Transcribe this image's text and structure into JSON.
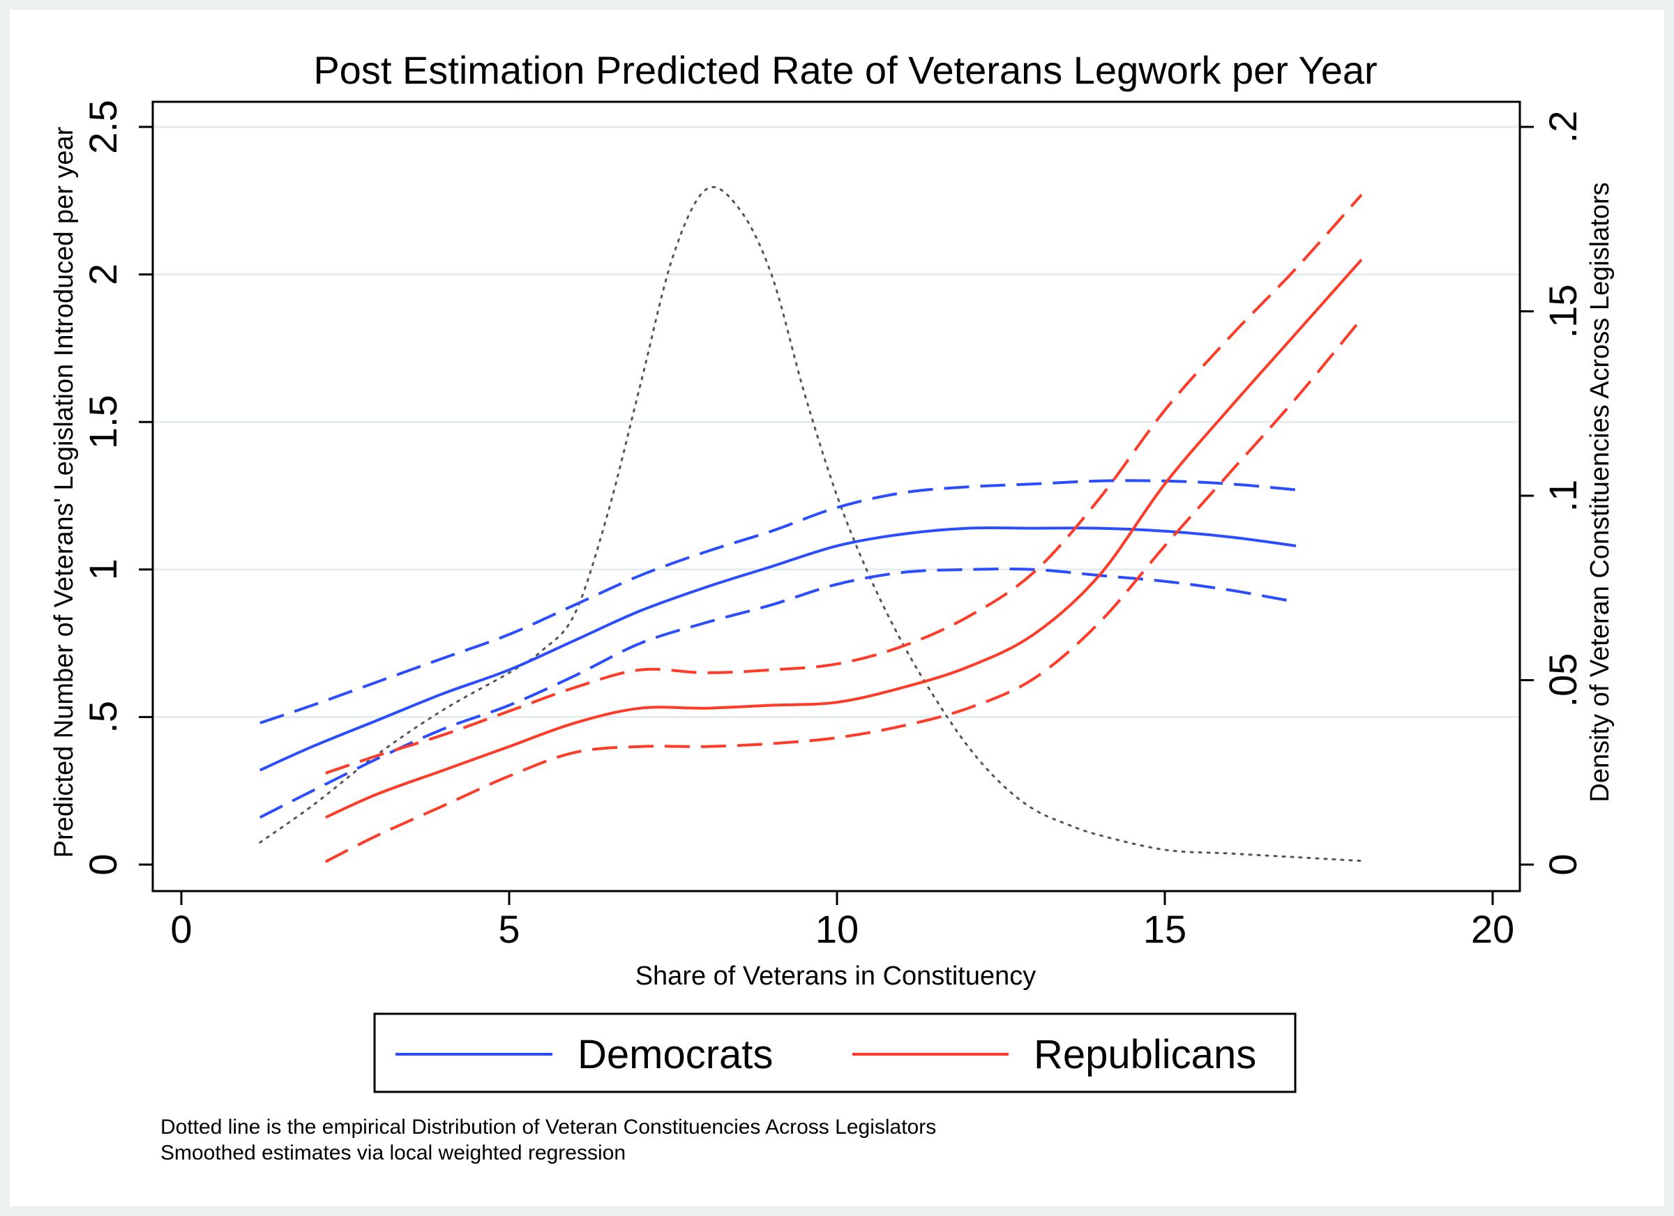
{
  "colors": {
    "dem": "#2a4dff",
    "rep": "#ff3a26",
    "density": "#555555",
    "grid": "#e3ecef"
  },
  "chart_data": {
    "type": "line",
    "title": "Post Estimation Predicted Rate of Veterans Legwork per Year",
    "xlabel": "Share of Veterans in Constituency",
    "ylabel": "Predicted Number of Veterans' Legislation Introduced per year",
    "y2label": "Density of Veteran Constituencies Across Legislators",
    "xlim": [
      0,
      20
    ],
    "ylim": [
      0,
      2.5
    ],
    "y2lim": [
      0,
      0.2
    ],
    "xticks": [
      {
        "v": 0,
        "label": "0"
      },
      {
        "v": 5,
        "label": "5"
      },
      {
        "v": 10,
        "label": "10"
      },
      {
        "v": 15,
        "label": "15"
      },
      {
        "v": 20,
        "label": "20"
      }
    ],
    "yticks": [
      {
        "v": 0,
        "label": "0"
      },
      {
        "v": 0.5,
        "label": ".5"
      },
      {
        "v": 1,
        "label": "1"
      },
      {
        "v": 1.5,
        "label": "1.5"
      },
      {
        "v": 2,
        "label": "2"
      },
      {
        "v": 2.5,
        "label": "2.5"
      }
    ],
    "y2ticks": [
      {
        "v": 0,
        "label": "0"
      },
      {
        "v": 0.05,
        "label": ".05"
      },
      {
        "v": 0.1,
        "label": ".1"
      },
      {
        "v": 0.15,
        "label": ".15"
      },
      {
        "v": 0.2,
        "label": ".2"
      }
    ],
    "series": [
      {
        "name": "Democrats",
        "style": "solid",
        "color": "dem",
        "x": [
          1.2,
          2,
          3,
          4,
          5,
          6,
          7,
          8,
          9,
          10,
          11,
          12,
          13,
          14,
          15,
          16,
          17
        ],
        "y": [
          0.32,
          0.4,
          0.49,
          0.58,
          0.66,
          0.76,
          0.86,
          0.94,
          1.01,
          1.08,
          1.12,
          1.14,
          1.14,
          1.14,
          1.13,
          1.11,
          1.08
        ]
      },
      {
        "name": "Democrats upper",
        "style": "dashed",
        "color": "dem",
        "x": [
          1.2,
          2,
          3,
          4,
          5,
          6,
          7,
          8,
          9,
          10,
          11,
          12,
          13,
          14,
          15,
          16,
          17
        ],
        "y": [
          0.48,
          0.54,
          0.62,
          0.7,
          0.78,
          0.88,
          0.98,
          1.06,
          1.13,
          1.21,
          1.26,
          1.28,
          1.29,
          1.3,
          1.3,
          1.29,
          1.27
        ]
      },
      {
        "name": "Democrats lower",
        "style": "dashed",
        "color": "dem",
        "x": [
          1.2,
          2,
          3,
          4,
          5,
          6,
          7,
          8,
          9,
          10,
          11,
          12,
          13,
          14,
          15,
          16,
          17
        ],
        "y": [
          0.16,
          0.25,
          0.36,
          0.46,
          0.54,
          0.64,
          0.75,
          0.82,
          0.88,
          0.95,
          0.99,
          1.0,
          1.0,
          0.98,
          0.96,
          0.93,
          0.89
        ]
      },
      {
        "name": "Republicans",
        "style": "solid",
        "color": "rep",
        "x": [
          2.2,
          3,
          4,
          5,
          6,
          7,
          8,
          9,
          10,
          11,
          12,
          13,
          14,
          15,
          16,
          17,
          18
        ],
        "y": [
          0.16,
          0.24,
          0.32,
          0.4,
          0.48,
          0.53,
          0.53,
          0.54,
          0.55,
          0.6,
          0.67,
          0.78,
          0.98,
          1.29,
          1.55,
          1.8,
          2.05
        ]
      },
      {
        "name": "Republicans upper",
        "style": "dashed",
        "color": "rep",
        "x": [
          2.2,
          3,
          4,
          5,
          6,
          7,
          8,
          9,
          10,
          11,
          12,
          13,
          14,
          15,
          16,
          17,
          18
        ],
        "y": [
          0.31,
          0.37,
          0.44,
          0.52,
          0.6,
          0.66,
          0.65,
          0.66,
          0.68,
          0.74,
          0.84,
          0.99,
          1.24,
          1.54,
          1.79,
          2.02,
          2.27
        ]
      },
      {
        "name": "Republicans lower",
        "style": "dashed",
        "color": "rep",
        "x": [
          2.2,
          3,
          4,
          5,
          6,
          7,
          8,
          9,
          10,
          11,
          12,
          13,
          14,
          15,
          16,
          17,
          18
        ],
        "y": [
          0.01,
          0.1,
          0.2,
          0.3,
          0.38,
          0.4,
          0.4,
          0.41,
          0.43,
          0.47,
          0.53,
          0.63,
          0.82,
          1.08,
          1.33,
          1.58,
          1.85
        ]
      }
    ],
    "density": {
      "name": "Empirical distribution of veteran constituencies",
      "style": "dotted",
      "color": "density",
      "axis": "y2",
      "x": [
        1.2,
        2,
        3,
        4,
        5,
        5.5,
        6,
        6.5,
        7,
        7.5,
        8,
        8.5,
        9,
        9.5,
        10,
        10.5,
        11,
        11.5,
        12,
        12.5,
        13,
        13.5,
        14,
        15,
        16,
        17,
        18
      ],
      "y": [
        0.006,
        0.016,
        0.03,
        0.042,
        0.052,
        0.058,
        0.068,
        0.095,
        0.13,
        0.165,
        0.183,
        0.178,
        0.16,
        0.128,
        0.1,
        0.078,
        0.06,
        0.045,
        0.032,
        0.022,
        0.015,
        0.011,
        0.008,
        0.004,
        0.003,
        0.002,
        0.001
      ]
    }
  },
  "legend": {
    "dem_label": "Democrats",
    "rep_label": "Republicans"
  },
  "notes": {
    "line1": "Dotted line is the empirical Distribution of Veteran Constituencies Across Legislators",
    "line2": "Smoothed estimates via local weighted regression"
  }
}
